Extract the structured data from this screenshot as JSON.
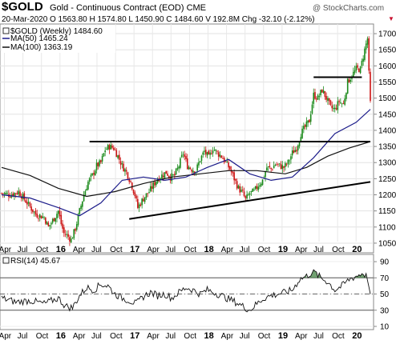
{
  "header": {
    "symbol": "$GOLD",
    "name": "Gold - Continuous Contract (EOD) CME",
    "credit": "@ StockCharts.com",
    "date": "20-Mar-2020",
    "ohlc": "O 1563.80  H 1574.80  L 1450.90  C 1484.60  V 192.8M  Chg -32.10 (-2.12%)",
    "chg_arrow": "▼"
  },
  "legend": {
    "main": "$GOLD (Weekly) 1484.60",
    "ma50": "MA(50) 1465.24",
    "ma100": "MA(100) 1363.19"
  },
  "rsi_legend": "RSI(14) 45.67",
  "colors": {
    "up": "#1a8a1a",
    "down": "#cc1414",
    "ma50": "#1c1c8a",
    "ma100": "#111111",
    "trend": "#000000",
    "rsi_fill": "#4e8a4e"
  },
  "chart_data": [
    {
      "type": "candlestick",
      "title": "$GOLD (Weekly)",
      "x_range": [
        "2015-04",
        "2020-03"
      ],
      "ylim": [
        1030,
        1720
      ],
      "y_ticks": [
        1050,
        1100,
        1150,
        1200,
        1250,
        1300,
        1350,
        1400,
        1450,
        1500,
        1550,
        1600,
        1650,
        1700
      ],
      "x_tick_labels": [
        "Apr",
        "Jul",
        "Oct",
        "16",
        "Apr",
        "Jul",
        "Oct",
        "17",
        "Apr",
        "Jul",
        "Oct",
        "18",
        "Apr",
        "Jul",
        "Oct",
        "19",
        "Apr",
        "Jul",
        "Oct",
        "20",
        "Apr"
      ],
      "price_path": [
        [
          0,
          1205
        ],
        [
          6,
          1200
        ],
        [
          12,
          1210
        ],
        [
          18,
          1175
        ],
        [
          24,
          1140
        ],
        [
          30,
          1130
        ],
        [
          33,
          1100
        ],
        [
          36,
          1120
        ],
        [
          40,
          1150
        ],
        [
          42,
          1110
        ],
        [
          44,
          1080
        ],
        [
          46,
          1075
        ],
        [
          49,
          1060
        ],
        [
          52,
          1095
        ],
        [
          55,
          1150
        ],
        [
          58,
          1200
        ],
        [
          61,
          1240
        ],
        [
          64,
          1260
        ],
        [
          67,
          1290
        ],
        [
          70,
          1300
        ],
        [
          73,
          1340
        ],
        [
          76,
          1350
        ],
        [
          79,
          1345
        ],
        [
          82,
          1320
        ],
        [
          85,
          1290
        ],
        [
          88,
          1270
        ],
        [
          91,
          1240
        ],
        [
          94,
          1200
        ],
        [
          96,
          1160
        ],
        [
          98,
          1175
        ],
        [
          101,
          1195
        ],
        [
          104,
          1210
        ],
        [
          107,
          1230
        ],
        [
          110,
          1250
        ],
        [
          113,
          1260
        ],
        [
          116,
          1270
        ],
        [
          119,
          1255
        ],
        [
          122,
          1260
        ],
        [
          125,
          1290
        ],
        [
          128,
          1330
        ],
        [
          131,
          1290
        ],
        [
          134,
          1280
        ],
        [
          137,
          1275
        ],
        [
          140,
          1310
        ],
        [
          143,
          1335
        ],
        [
          146,
          1315
        ],
        [
          149,
          1345
        ],
        [
          152,
          1330
        ],
        [
          155,
          1320
        ],
        [
          158,
          1300
        ],
        [
          161,
          1280
        ],
        [
          164,
          1250
        ],
        [
          167,
          1220
        ],
        [
          170,
          1205
        ],
        [
          172,
          1185
        ],
        [
          175,
          1205
        ],
        [
          178,
          1210
        ],
        [
          181,
          1230
        ],
        [
          184,
          1245
        ],
        [
          187,
          1285
        ],
        [
          190,
          1280
        ],
        [
          193,
          1295
        ],
        [
          196,
          1290
        ],
        [
          199,
          1285
        ],
        [
          202,
          1300
        ],
        [
          205,
          1330
        ],
        [
          208,
          1345
        ],
        [
          211,
          1390
        ],
        [
          214,
          1410
        ],
        [
          217,
          1430
        ],
        [
          220,
          1510
        ],
        [
          223,
          1500
        ],
        [
          226,
          1525
        ],
        [
          229,
          1500
        ],
        [
          232,
          1470
        ],
        [
          235,
          1465
        ],
        [
          238,
          1490
        ],
        [
          241,
          1480
        ],
        [
          244,
          1550
        ],
        [
          247,
          1570
        ],
        [
          250,
          1590
        ],
        [
          253,
          1590
        ],
        [
          256,
          1650
        ],
        [
          258,
          1685
        ],
        [
          259,
          1575
        ],
        [
          260,
          1485
        ]
      ],
      "ma50": {
        "name": "MA(50)",
        "last": 1465.24,
        "path": [
          [
            0,
            1200
          ],
          [
            20,
            1190
          ],
          [
            40,
            1160
          ],
          [
            55,
            1135
          ],
          [
            70,
            1175
          ],
          [
            85,
            1245
          ],
          [
            100,
            1255
          ],
          [
            115,
            1245
          ],
          [
            130,
            1255
          ],
          [
            145,
            1285
          ],
          [
            160,
            1310
          ],
          [
            175,
            1265
          ],
          [
            190,
            1245
          ],
          [
            205,
            1255
          ],
          [
            220,
            1315
          ],
          [
            235,
            1390
          ],
          [
            250,
            1425
          ],
          [
            260,
            1465
          ]
        ]
      },
      "ma100": {
        "name": "MA(100)",
        "last": 1363.19,
        "path": [
          [
            0,
            1285
          ],
          [
            20,
            1260
          ],
          [
            40,
            1220
          ],
          [
            60,
            1195
          ],
          [
            80,
            1210
          ],
          [
            100,
            1235
          ],
          [
            120,
            1255
          ],
          [
            140,
            1265
          ],
          [
            160,
            1275
          ],
          [
            180,
            1275
          ],
          [
            200,
            1265
          ],
          [
            215,
            1285
          ],
          [
            230,
            1320
          ],
          [
            245,
            1345
          ],
          [
            260,
            1365
          ]
        ]
      },
      "trendlines": [
        {
          "from": [
            62,
            1365
          ],
          "to": [
            260,
            1365
          ]
        },
        {
          "from": [
            90,
            1125
          ],
          "to": [
            260,
            1240
          ]
        },
        {
          "from": [
            220,
            1565
          ],
          "to": [
            254,
            1565
          ]
        }
      ]
    },
    {
      "type": "line",
      "title": "RSI(14)",
      "ylim": [
        10,
        95
      ],
      "y_ticks": [
        10,
        30,
        50,
        70,
        90
      ],
      "y_label_values": [
        90,
        70,
        50,
        30,
        10
      ],
      "reference_lines": [
        70,
        50,
        30
      ],
      "last": 45.67,
      "path": [
        [
          0,
          45
        ],
        [
          10,
          40
        ],
        [
          20,
          42
        ],
        [
          30,
          38
        ],
        [
          40,
          45
        ],
        [
          45,
          35
        ],
        [
          50,
          33
        ],
        [
          55,
          48
        ],
        [
          60,
          58
        ],
        [
          65,
          55
        ],
        [
          70,
          62
        ],
        [
          75,
          60
        ],
        [
          80,
          50
        ],
        [
          85,
          45
        ],
        [
          90,
          42
        ],
        [
          95,
          38
        ],
        [
          100,
          47
        ],
        [
          105,
          52
        ],
        [
          110,
          48
        ],
        [
          115,
          50
        ],
        [
          120,
          45
        ],
        [
          125,
          52
        ],
        [
          130,
          58
        ],
        [
          135,
          55
        ],
        [
          140,
          50
        ],
        [
          145,
          55
        ],
        [
          150,
          52
        ],
        [
          155,
          48
        ],
        [
          160,
          44
        ],
        [
          165,
          40
        ],
        [
          170,
          35
        ],
        [
          175,
          30
        ],
        [
          180,
          38
        ],
        [
          185,
          45
        ],
        [
          190,
          48
        ],
        [
          195,
          50
        ],
        [
          200,
          52
        ],
        [
          205,
          55
        ],
        [
          210,
          68
        ],
        [
          215,
          72
        ],
        [
          220,
          78
        ],
        [
          225,
          70
        ],
        [
          230,
          65
        ],
        [
          235,
          55
        ],
        [
          240,
          60
        ],
        [
          245,
          68
        ],
        [
          250,
          72
        ],
        [
          255,
          76
        ],
        [
          258,
          70
        ],
        [
          260,
          46
        ]
      ]
    }
  ]
}
